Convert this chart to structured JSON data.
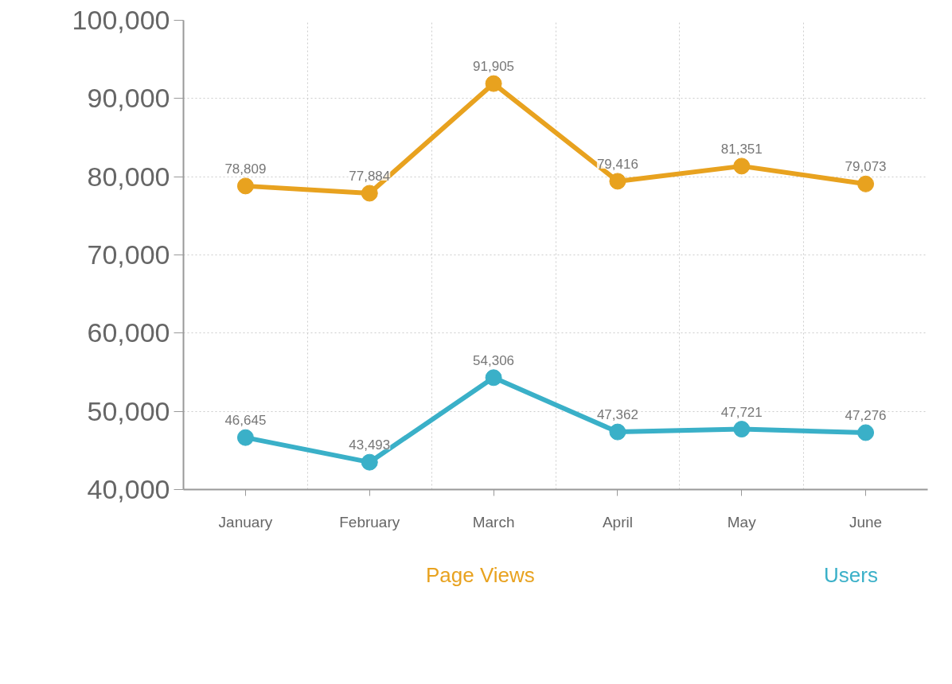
{
  "chart_data": {
    "type": "line",
    "categories": [
      "January",
      "February",
      "March",
      "April",
      "May",
      "June"
    ],
    "series": [
      {
        "name": "Page Views",
        "color": "#e8a21f",
        "values": [
          78809,
          77884,
          91905,
          79416,
          81351,
          79073
        ],
        "value_labels": [
          "78,809",
          "77,884",
          "91,905",
          "79,416",
          "81,351",
          "79,073"
        ]
      },
      {
        "name": "Users",
        "color": "#3ab0c8",
        "values": [
          46645,
          43493,
          54306,
          47362,
          47721,
          47276
        ],
        "value_labels": [
          "46,645",
          "43,493",
          "54,306",
          "47,362",
          "47,721",
          "47,276"
        ]
      }
    ],
    "ylim": [
      40000,
      100000
    ],
    "yticks": [
      {
        "value": 40000,
        "label": "40,000"
      },
      {
        "value": 50000,
        "label": "50,000"
      },
      {
        "value": 60000,
        "label": "60,000"
      },
      {
        "value": 70000,
        "label": "70,000"
      },
      {
        "value": 80000,
        "label": "80,000"
      },
      {
        "value": 90000,
        "label": "90,000"
      },
      {
        "value": 100000,
        "label": "100,000"
      }
    ],
    "grid": true,
    "legend": "bottom",
    "marker": "circle",
    "line_style": "solid"
  }
}
